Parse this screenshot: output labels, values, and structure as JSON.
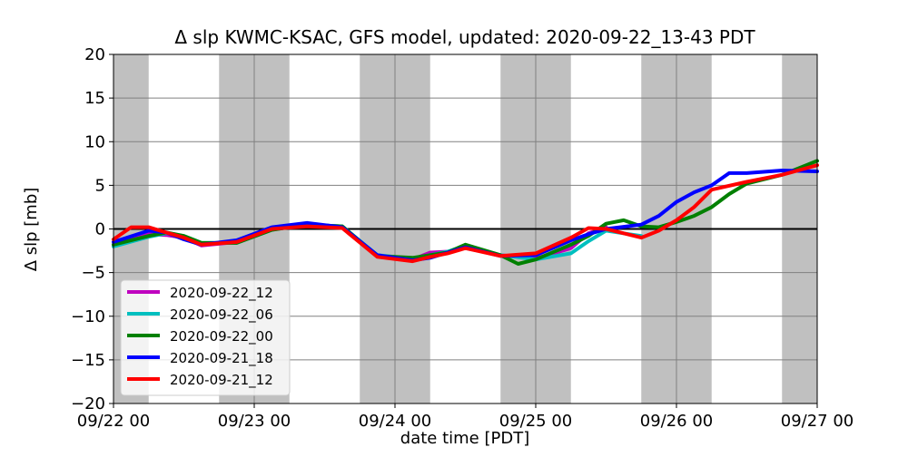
{
  "chart_data": {
    "type": "line",
    "title": "Δ slp KWMC-KSAC, GFS model, updated: 2020-09-22_13-43 PDT",
    "xlabel": "date time [PDT]",
    "ylabel": "Δ slp [mb]",
    "xlim": [
      "2020-09-22 00:00",
      "2020-09-27 00:00"
    ],
    "ylim": [
      -20,
      20
    ],
    "x_ticks": [
      "09/22 00",
      "09/23 00",
      "09/24 00",
      "09/25 00",
      "09/26 00",
      "09/27 00"
    ],
    "y_ticks": [
      20,
      15,
      10,
      5,
      0,
      -5,
      -10,
      -15,
      -20
    ],
    "grid": true,
    "legend_position": "lower-left",
    "night_shading": [
      {
        "start": "2020-09-22 00:00",
        "end": "2020-09-22 06:00"
      },
      {
        "start": "2020-09-22 18:00",
        "end": "2020-09-23 06:00"
      },
      {
        "start": "2020-09-23 18:00",
        "end": "2020-09-24 06:00"
      },
      {
        "start": "2020-09-24 18:00",
        "end": "2020-09-25 06:00"
      },
      {
        "start": "2020-09-25 18:00",
        "end": "2020-09-26 06:00"
      },
      {
        "start": "2020-09-26 18:00",
        "end": "2020-09-27 00:00"
      }
    ],
    "series": [
      {
        "name": "2020-09-22_12",
        "color": "#bf00bf",
        "points": [
          [
            "2020-09-22 00:00",
            -1.8
          ],
          [
            "2020-09-22 06:00",
            -0.6
          ],
          [
            "2020-09-22 09:00",
            -0.7
          ],
          [
            "2020-09-22 12:00",
            -1.0
          ],
          [
            "2020-09-22 15:00",
            -1.9
          ],
          [
            "2020-09-22 21:00",
            -1.5
          ],
          [
            "2020-09-23 03:00",
            0.0
          ],
          [
            "2020-09-23 09:00",
            0.5
          ],
          [
            "2020-09-23 15:00",
            0.3
          ],
          [
            "2020-09-23 21:00",
            -3.1
          ],
          [
            "2020-09-24 03:00",
            -3.5
          ],
          [
            "2020-09-24 06:00",
            -2.7
          ],
          [
            "2020-09-24 09:00",
            -2.6
          ],
          [
            "2020-09-24 12:00",
            -2.2
          ],
          [
            "2020-09-24 18:00",
            -3.0
          ],
          [
            "2020-09-25 00:00",
            -3.4
          ],
          [
            "2020-09-25 06:00",
            -2.2
          ],
          [
            "2020-09-25 09:00",
            -0.5
          ],
          [
            "2020-09-25 12:00",
            0.2
          ]
        ]
      },
      {
        "name": "2020-09-22_06",
        "color": "#00bfbf",
        "points": [
          [
            "2020-09-22 00:00",
            -2.0
          ],
          [
            "2020-09-22 06:00",
            -0.9
          ],
          [
            "2020-09-22 09:00",
            -0.5
          ],
          [
            "2020-09-22 12:00",
            -0.8
          ],
          [
            "2020-09-22 15:00",
            -1.6
          ],
          [
            "2020-09-22 21:00",
            -1.6
          ],
          [
            "2020-09-23 03:00",
            -0.1
          ],
          [
            "2020-09-23 09:00",
            0.5
          ],
          [
            "2020-09-23 15:00",
            0.3
          ],
          [
            "2020-09-23 21:00",
            -3.0
          ],
          [
            "2020-09-24 03:00",
            -3.4
          ],
          [
            "2020-09-24 06:00",
            -3.0
          ],
          [
            "2020-09-24 09:00",
            -2.6
          ],
          [
            "2020-09-24 12:00",
            -1.9
          ],
          [
            "2020-09-24 18:00",
            -3.0
          ],
          [
            "2020-09-25 00:00",
            -3.5
          ],
          [
            "2020-09-25 06:00",
            -2.8
          ],
          [
            "2020-09-25 09:00",
            -1.4
          ],
          [
            "2020-09-25 12:00",
            -0.2
          ],
          [
            "2020-09-25 16:00",
            -0.6
          ],
          [
            "2020-09-25 18:00",
            -0.8
          ]
        ]
      },
      {
        "name": "2020-09-22_00",
        "color": "#008000",
        "points": [
          [
            "2020-09-22 00:00",
            -1.8
          ],
          [
            "2020-09-22 06:00",
            -0.8
          ],
          [
            "2020-09-22 09:00",
            -0.4
          ],
          [
            "2020-09-22 12:00",
            -0.8
          ],
          [
            "2020-09-22 15:00",
            -1.6
          ],
          [
            "2020-09-22 21:00",
            -1.6
          ],
          [
            "2020-09-23 03:00",
            -0.1
          ],
          [
            "2020-09-23 09:00",
            0.5
          ],
          [
            "2020-09-23 15:00",
            0.3
          ],
          [
            "2020-09-23 21:00",
            -3.1
          ],
          [
            "2020-09-24 03:00",
            -3.3
          ],
          [
            "2020-09-24 06:00",
            -3.0
          ],
          [
            "2020-09-24 09:00",
            -2.7
          ],
          [
            "2020-09-24 12:00",
            -1.8
          ],
          [
            "2020-09-24 18:00",
            -3.0
          ],
          [
            "2020-09-24 21:00",
            -4.0
          ],
          [
            "2020-09-25 00:00",
            -3.5
          ],
          [
            "2020-09-25 06:00",
            -1.8
          ],
          [
            "2020-09-25 09:00",
            -0.8
          ],
          [
            "2020-09-25 12:00",
            0.6
          ],
          [
            "2020-09-25 15:00",
            1.0
          ],
          [
            "2020-09-25 18:00",
            0.3
          ],
          [
            "2020-09-25 21:00",
            0.2
          ],
          [
            "2020-09-26 00:00",
            0.8
          ],
          [
            "2020-09-26 03:00",
            1.5
          ],
          [
            "2020-09-26 06:00",
            2.5
          ],
          [
            "2020-09-26 09:00",
            4.0
          ],
          [
            "2020-09-26 12:00",
            5.2
          ],
          [
            "2020-09-26 18:00",
            6.2
          ],
          [
            "2020-09-27 00:00",
            7.8
          ]
        ]
      },
      {
        "name": "2020-09-21_18",
        "color": "#0000ff",
        "points": [
          [
            "2020-09-22 00:00",
            -1.5
          ],
          [
            "2020-09-22 06:00",
            -0.2
          ],
          [
            "2020-09-22 09:00",
            -0.4
          ],
          [
            "2020-09-22 12:00",
            -1.2
          ],
          [
            "2020-09-22 15:00",
            -1.8
          ],
          [
            "2020-09-22 21:00",
            -1.3
          ],
          [
            "2020-09-23 03:00",
            0.2
          ],
          [
            "2020-09-23 09:00",
            0.7
          ],
          [
            "2020-09-23 15:00",
            0.2
          ],
          [
            "2020-09-23 21:00",
            -3.0
          ],
          [
            "2020-09-24 03:00",
            -3.6
          ],
          [
            "2020-09-24 06:00",
            -3.3
          ],
          [
            "2020-09-24 09:00",
            -2.7
          ],
          [
            "2020-09-24 12:00",
            -2.1
          ],
          [
            "2020-09-24 18:00",
            -3.1
          ],
          [
            "2020-09-25 00:00",
            -3.0
          ],
          [
            "2020-09-25 06:00",
            -1.3
          ],
          [
            "2020-09-25 09:00",
            -0.6
          ],
          [
            "2020-09-25 12:00",
            0.0
          ],
          [
            "2020-09-25 18:00",
            0.5
          ],
          [
            "2020-09-25 21:00",
            1.5
          ],
          [
            "2020-09-26 00:00",
            3.1
          ],
          [
            "2020-09-26 03:00",
            4.2
          ],
          [
            "2020-09-26 06:00",
            5.0
          ],
          [
            "2020-09-26 09:00",
            6.4
          ],
          [
            "2020-09-26 12:00",
            6.4
          ],
          [
            "2020-09-26 18:00",
            6.7
          ],
          [
            "2020-09-27 00:00",
            6.6
          ]
        ]
      },
      {
        "name": "2020-09-21_12",
        "color": "#ff0000",
        "points": [
          [
            "2020-09-22 00:00",
            -1.2
          ],
          [
            "2020-09-22 03:00",
            0.2
          ],
          [
            "2020-09-22 06:00",
            0.2
          ],
          [
            "2020-09-22 09:00",
            -0.4
          ],
          [
            "2020-09-22 12:00",
            -1.0
          ],
          [
            "2020-09-22 15:00",
            -1.8
          ],
          [
            "2020-09-22 21:00",
            -1.5
          ],
          [
            "2020-09-23 03:00",
            0.0
          ],
          [
            "2020-09-23 09:00",
            0.3
          ],
          [
            "2020-09-23 15:00",
            0.1
          ],
          [
            "2020-09-23 21:00",
            -3.2
          ],
          [
            "2020-09-24 03:00",
            -3.7
          ],
          [
            "2020-09-24 06:00",
            -3.2
          ],
          [
            "2020-09-24 09:00",
            -2.8
          ],
          [
            "2020-09-24 12:00",
            -2.2
          ],
          [
            "2020-09-24 18:00",
            -3.1
          ],
          [
            "2020-09-25 00:00",
            -2.8
          ],
          [
            "2020-09-25 06:00",
            -1.0
          ],
          [
            "2020-09-25 09:00",
            0.1
          ],
          [
            "2020-09-25 12:00",
            0.0
          ],
          [
            "2020-09-25 15:00",
            -0.5
          ],
          [
            "2020-09-25 18:00",
            -1.0
          ],
          [
            "2020-09-25 21:00",
            -0.2
          ],
          [
            "2020-09-26 00:00",
            1.0
          ],
          [
            "2020-09-26 03:00",
            2.5
          ],
          [
            "2020-09-26 06:00",
            4.5
          ],
          [
            "2020-09-26 12:00",
            5.4
          ],
          [
            "2020-09-26 18:00",
            6.2
          ],
          [
            "2020-09-27 00:00",
            7.3
          ]
        ]
      }
    ]
  }
}
